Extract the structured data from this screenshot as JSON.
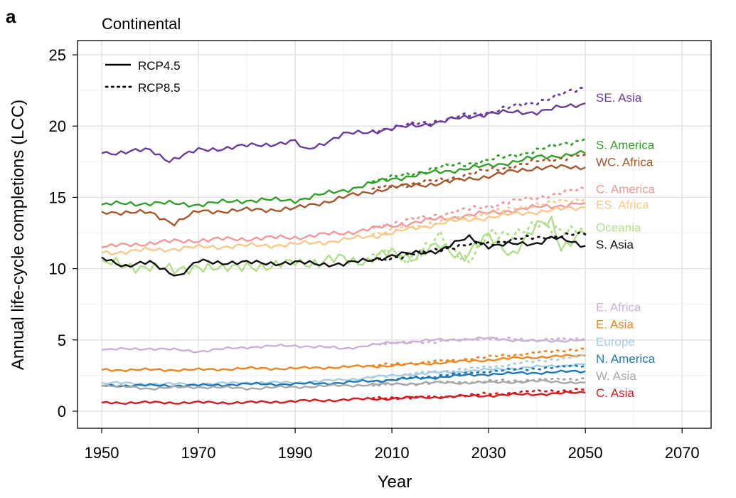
{
  "chart_data": {
    "type": "line",
    "panel_label": "a",
    "title": "Continental",
    "xlabel": "Year",
    "ylabel": "Annual life-cycle completions (LCC)",
    "xlim": [
      1945,
      2076
    ],
    "ylim": [
      -1.2,
      26
    ],
    "x_ticks": [
      1950,
      1970,
      1990,
      2010,
      2030,
      2050,
      2070
    ],
    "y_ticks": [
      0,
      5,
      10,
      15,
      20,
      25
    ],
    "grid": true,
    "legend_position": "top-left",
    "legend": [
      {
        "label": "RCP4.5",
        "style": "solid"
      },
      {
        "label": "RCP8.5",
        "style": "dotted"
      }
    ],
    "scenario_split_year": 2006,
    "series": [
      {
        "name": "SE. Asia",
        "color": "#6a3d9a",
        "label_y": 22.0,
        "rcp45": [
          [
            1950,
            18.1
          ],
          [
            1960,
            18.3
          ],
          [
            1964,
            17.6
          ],
          [
            1970,
            18.3
          ],
          [
            1980,
            18.6
          ],
          [
            1990,
            18.9
          ],
          [
            1992,
            18.3
          ],
          [
            2000,
            19.4
          ],
          [
            2010,
            19.8
          ],
          [
            2020,
            20.3
          ],
          [
            2030,
            20.9
          ],
          [
            2040,
            21.0
          ],
          [
            2050,
            21.6
          ]
        ],
        "rcp85": [
          [
            2006,
            19.7
          ],
          [
            2020,
            20.4
          ],
          [
            2030,
            21.0
          ],
          [
            2040,
            21.7
          ],
          [
            2050,
            22.7
          ]
        ]
      },
      {
        "name": "S. America",
        "color": "#33a02c",
        "label_y": 18.7,
        "rcp45": [
          [
            1950,
            14.5
          ],
          [
            1960,
            14.6
          ],
          [
            1970,
            14.5
          ],
          [
            1980,
            14.8
          ],
          [
            1990,
            14.8
          ],
          [
            2000,
            15.5
          ],
          [
            2010,
            16.3
          ],
          [
            2020,
            16.8
          ],
          [
            2030,
            17.2
          ],
          [
            2040,
            17.8
          ],
          [
            2050,
            18.1
          ]
        ],
        "rcp85": [
          [
            2006,
            16.1
          ],
          [
            2020,
            17.1
          ],
          [
            2030,
            17.6
          ],
          [
            2040,
            18.3
          ],
          [
            2050,
            19.1
          ]
        ]
      },
      {
        "name": "WC. Africa",
        "color": "#a6582d",
        "label_y": 17.5,
        "rcp45": [
          [
            1950,
            14.0
          ],
          [
            1960,
            13.9
          ],
          [
            1965,
            13.2
          ],
          [
            1970,
            14.0
          ],
          [
            1980,
            14.1
          ],
          [
            1990,
            14.2
          ],
          [
            2000,
            15.0
          ],
          [
            2010,
            15.7
          ],
          [
            2020,
            16.0
          ],
          [
            2030,
            16.5
          ],
          [
            2040,
            17.1
          ],
          [
            2050,
            17.1
          ]
        ],
        "rcp85": [
          [
            2006,
            15.6
          ],
          [
            2020,
            16.2
          ],
          [
            2030,
            16.9
          ],
          [
            2040,
            17.5
          ],
          [
            2050,
            18.0
          ]
        ]
      },
      {
        "name": "C. America",
        "color": "#f0999b",
        "label_y": 15.6,
        "rcp45": [
          [
            1950,
            11.5
          ],
          [
            1960,
            11.8
          ],
          [
            1970,
            12.0
          ],
          [
            1980,
            12.1
          ],
          [
            1990,
            12.2
          ],
          [
            2000,
            12.5
          ],
          [
            2010,
            13.0
          ],
          [
            2020,
            13.5
          ],
          [
            2030,
            13.9
          ],
          [
            2040,
            14.3
          ],
          [
            2050,
            14.6
          ]
        ],
        "rcp85": [
          [
            2006,
            12.9
          ],
          [
            2020,
            13.8
          ],
          [
            2030,
            14.4
          ],
          [
            2040,
            15.0
          ],
          [
            2050,
            15.6
          ]
        ]
      },
      {
        "name": "ES. Africa",
        "color": "#f8c98a",
        "label_y": 14.5,
        "rcp45": [
          [
            1950,
            11.1
          ],
          [
            1960,
            11.3
          ],
          [
            1970,
            11.5
          ],
          [
            1980,
            11.6
          ],
          [
            1990,
            11.7
          ],
          [
            2000,
            12.0
          ],
          [
            2010,
            12.5
          ],
          [
            2020,
            13.2
          ],
          [
            2030,
            13.6
          ],
          [
            2040,
            14.0
          ],
          [
            2050,
            14.3
          ]
        ],
        "rcp85": [
          [
            2006,
            12.4
          ],
          [
            2020,
            13.3
          ],
          [
            2030,
            13.9
          ],
          [
            2040,
            14.5
          ],
          [
            2050,
            14.9
          ]
        ]
      },
      {
        "name": "Oceania",
        "color": "#b2df8a",
        "label_y": 12.9,
        "rcp45": [
          [
            1950,
            10.6
          ],
          [
            1955,
            10.0
          ],
          [
            1960,
            10.3
          ],
          [
            1965,
            9.7
          ],
          [
            1970,
            10.3
          ],
          [
            1975,
            9.8
          ],
          [
            1980,
            10.4
          ],
          [
            1985,
            9.9
          ],
          [
            1990,
            10.7
          ],
          [
            1995,
            10.2
          ],
          [
            2000,
            10.9
          ],
          [
            2005,
            10.4
          ],
          [
            2010,
            11.2
          ],
          [
            2015,
            10.8
          ],
          [
            2020,
            11.6
          ],
          [
            2025,
            10.9
          ],
          [
            2030,
            12.2
          ],
          [
            2035,
            11.1
          ],
          [
            2040,
            12.9
          ],
          [
            2043,
            13.4
          ],
          [
            2045,
            11.6
          ],
          [
            2050,
            12.5
          ]
        ],
        "rcp85": [
          [
            2006,
            11.0
          ],
          [
            2015,
            10.8
          ],
          [
            2020,
            12.2
          ],
          [
            2026,
            10.6
          ],
          [
            2030,
            12.3
          ],
          [
            2040,
            12.9
          ],
          [
            2050,
            12.8
          ]
        ]
      },
      {
        "name": "S. Asia",
        "color": "#111111",
        "label_y": 11.7,
        "rcp45": [
          [
            1950,
            10.8
          ],
          [
            1955,
            10.2
          ],
          [
            1960,
            10.4
          ],
          [
            1966,
            9.5
          ],
          [
            1970,
            10.5
          ],
          [
            1980,
            10.4
          ],
          [
            1990,
            10.4
          ],
          [
            2000,
            10.3
          ],
          [
            2010,
            10.9
          ],
          [
            2020,
            11.3
          ],
          [
            2026,
            12.2
          ],
          [
            2030,
            11.6
          ],
          [
            2040,
            11.8
          ],
          [
            2043,
            12.2
          ],
          [
            2050,
            11.6
          ]
        ],
        "rcp85": [
          [
            2006,
            10.6
          ],
          [
            2015,
            11.0
          ],
          [
            2020,
            11.4
          ],
          [
            2030,
            11.8
          ],
          [
            2040,
            12.2
          ],
          [
            2050,
            12.4
          ]
        ]
      },
      {
        "name": "E. Africa",
        "color": "#cab2d6",
        "label_y": 7.3,
        "rcp45": [
          [
            1950,
            4.3
          ],
          [
            1960,
            4.4
          ],
          [
            1970,
            4.2
          ],
          [
            1980,
            4.5
          ],
          [
            1990,
            4.6
          ],
          [
            2000,
            4.4
          ],
          [
            2010,
            4.8
          ],
          [
            2020,
            5.0
          ],
          [
            2030,
            5.1
          ],
          [
            2040,
            4.9
          ],
          [
            2050,
            5.0
          ]
        ],
        "rcp85": [
          [
            2006,
            4.7
          ],
          [
            2020,
            4.9
          ],
          [
            2030,
            5.1
          ],
          [
            2040,
            5.0
          ],
          [
            2050,
            5.1
          ]
        ]
      },
      {
        "name": "E. Asia",
        "color": "#f0861f",
        "label_y": 6.1,
        "rcp45": [
          [
            1950,
            2.9
          ],
          [
            1960,
            2.9
          ],
          [
            1970,
            2.9
          ],
          [
            1980,
            3.0
          ],
          [
            1990,
            3.0
          ],
          [
            2000,
            3.1
          ],
          [
            2010,
            3.2
          ],
          [
            2020,
            3.4
          ],
          [
            2030,
            3.6
          ],
          [
            2040,
            3.8
          ],
          [
            2050,
            3.9
          ]
        ],
        "rcp85": [
          [
            2006,
            3.2
          ],
          [
            2020,
            3.5
          ],
          [
            2030,
            3.8
          ],
          [
            2040,
            4.1
          ],
          [
            2050,
            4.4
          ]
        ]
      },
      {
        "name": "Europe",
        "color": "#a6cee3",
        "label_y": 4.9,
        "rcp45": [
          [
            1950,
            2.0
          ],
          [
            1960,
            1.9
          ],
          [
            1970,
            1.9
          ],
          [
            1980,
            2.0
          ],
          [
            1990,
            2.0
          ],
          [
            2000,
            2.2
          ],
          [
            2010,
            2.5
          ],
          [
            2020,
            2.7
          ],
          [
            2030,
            2.9
          ],
          [
            2040,
            3.1
          ],
          [
            2050,
            3.3
          ]
        ],
        "rcp85": [
          [
            2006,
            2.4
          ],
          [
            2020,
            2.8
          ],
          [
            2030,
            3.1
          ],
          [
            2040,
            3.5
          ],
          [
            2050,
            3.9
          ]
        ]
      },
      {
        "name": "N. America",
        "color": "#1f78b4",
        "label_y": 3.7,
        "rcp45": [
          [
            1950,
            1.8
          ],
          [
            1960,
            1.8
          ],
          [
            1970,
            1.8
          ],
          [
            1980,
            1.9
          ],
          [
            1990,
            1.9
          ],
          [
            2000,
            2.0
          ],
          [
            2010,
            2.2
          ],
          [
            2020,
            2.4
          ],
          [
            2030,
            2.6
          ],
          [
            2040,
            2.7
          ],
          [
            2050,
            2.8
          ]
        ],
        "rcp85": [
          [
            2006,
            2.1
          ],
          [
            2020,
            2.5
          ],
          [
            2030,
            2.8
          ],
          [
            2040,
            3.0
          ],
          [
            2050,
            3.2
          ]
        ]
      },
      {
        "name": "W. Asia",
        "color": "#a8a8a8",
        "label_y": 2.5,
        "rcp45": [
          [
            1950,
            1.8
          ],
          [
            1960,
            1.6
          ],
          [
            1970,
            1.7
          ],
          [
            1980,
            1.6
          ],
          [
            1990,
            1.7
          ],
          [
            2000,
            1.8
          ],
          [
            2010,
            1.9
          ],
          [
            2020,
            2.0
          ],
          [
            2030,
            2.0
          ],
          [
            2040,
            2.1
          ],
          [
            2050,
            2.0
          ]
        ],
        "rcp85": [
          [
            2006,
            1.8
          ],
          [
            2020,
            2.0
          ],
          [
            2030,
            2.1
          ],
          [
            2040,
            2.2
          ],
          [
            2050,
            2.3
          ]
        ]
      },
      {
        "name": "C. Asia",
        "color": "#d7191c",
        "label_y": 1.3,
        "rcp45": [
          [
            1950,
            0.6
          ],
          [
            1960,
            0.6
          ],
          [
            1970,
            0.6
          ],
          [
            1980,
            0.6
          ],
          [
            1990,
            0.7
          ],
          [
            2000,
            0.8
          ],
          [
            2010,
            0.9
          ],
          [
            2020,
            1.0
          ],
          [
            2030,
            1.1
          ],
          [
            2040,
            1.2
          ],
          [
            2050,
            1.3
          ]
        ],
        "rcp85": [
          [
            2006,
            0.9
          ],
          [
            2020,
            1.0
          ],
          [
            2030,
            1.2
          ],
          [
            2040,
            1.4
          ],
          [
            2050,
            1.5
          ]
        ]
      }
    ]
  }
}
